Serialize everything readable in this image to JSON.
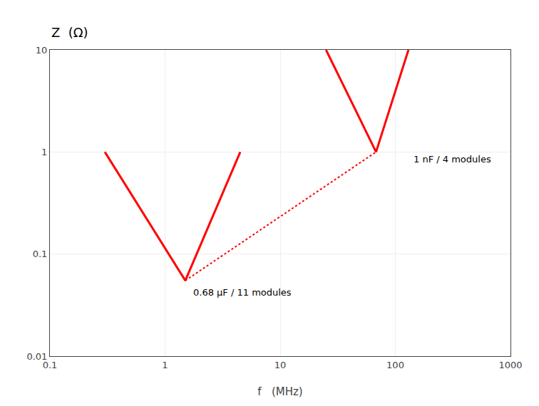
{
  "chart_data": {
    "type": "line",
    "xlabel": "f   (MHz)",
    "ylabel": "Z  (Ω)",
    "log": true,
    "grid": true,
    "xlim": [
      0.1,
      1000
    ],
    "ylim": [
      0.01,
      10
    ],
    "xticks": [
      0.1,
      1,
      10,
      100,
      1000
    ],
    "yticks": [
      0.01,
      0.1,
      1,
      10
    ],
    "series": [
      {
        "x": [
          0.3,
          1.5,
          4.5
        ],
        "values": [
          1.0,
          0.055,
          1.0
        ],
        "color": "#ff0000",
        "line_style": "solid"
      },
      {
        "x": [
          25.0,
          68.0,
          130.0
        ],
        "values": [
          10.0,
          1.0,
          10.0
        ],
        "color": "#ff0000",
        "line_style": "solid"
      },
      {
        "x": [
          1.5,
          68.0
        ],
        "values": [
          0.055,
          1.0
        ],
        "color": "#ff0000",
        "line_style": "dotted"
      }
    ],
    "annotations": [
      {
        "text": "0.68 μF / 11 modules",
        "x": 1.7,
        "y": 0.042
      },
      {
        "text": "1 nF / 4 modules",
        "x": 140,
        "y": 0.85
      }
    ]
  }
}
